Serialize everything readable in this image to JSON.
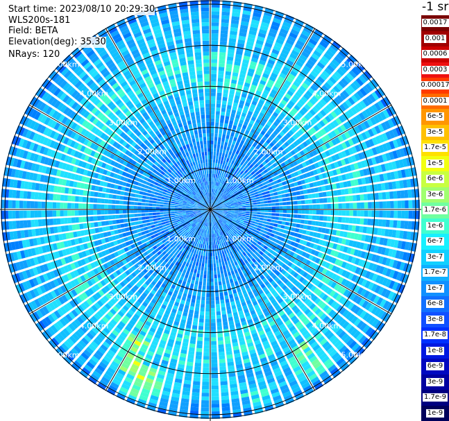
{
  "info": {
    "start_time": "Start time: 2023/08/10 20:29:30",
    "instrument": "WLS200s-181",
    "field": "Field: BETA",
    "elevation": "Elevation(deg): 35.30",
    "nrays": "NRays: 120"
  },
  "colorbar": {
    "unit": "-1 sr",
    "labels": [
      "0.0017",
      "0.001",
      "0.0006",
      "0.0003",
      "0.00017",
      "0.0001",
      "6e-5",
      "3e-5",
      "1.7e-5",
      "1e-5",
      "6e-6",
      "3e-6",
      "1.7e-6",
      "1e-6",
      "6e-7",
      "3e-7",
      "1.7e-7",
      "1e-7",
      "6e-8",
      "3e-8",
      "1.7e-8",
      "1e-8",
      "6e-9",
      "3e-9",
      "1.7e-9",
      "1e-9"
    ],
    "colors": [
      "#7a0000",
      "#a00000",
      "#cc0000",
      "#ee1010",
      "#ff3a00",
      "#ff6a00",
      "#ff9600",
      "#ffc000",
      "#ffe000",
      "#f2ff10",
      "#c8ff40",
      "#a0ff70",
      "#70ffa0",
      "#40ffd0",
      "#18f0ff",
      "#10d0ff",
      "#10b0ff",
      "#1090ff",
      "#1070ff",
      "#1050ff",
      "#0030ff",
      "#0018e0",
      "#0008c0",
      "#0000a0",
      "#000080",
      "#00005a"
    ]
  },
  "chart_data": {
    "type": "heatmap",
    "projection": "polar (PPI scan)",
    "n_rays": 120,
    "range_ring_labels_km": [
      "1.00km",
      "2.00km",
      "3.00km",
      "4.00km",
      "5.00km"
    ],
    "range_rings_km": [
      1,
      2,
      3,
      4,
      5
    ],
    "max_range_km": 5.1,
    "field": "BETA",
    "elevation_deg": 35.3,
    "scale": "log",
    "value_range": [
      1e-09,
      0.0017
    ]
  }
}
